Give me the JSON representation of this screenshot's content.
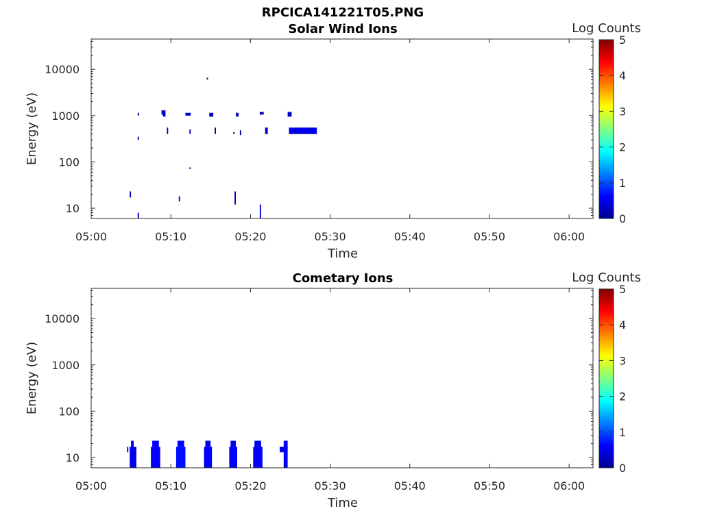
{
  "figure_title": "RPCICA141221T05.PNG",
  "colormap": [
    "#00008f",
    "#0000ff",
    "#0080ff",
    "#00ffff",
    "#80ff80",
    "#ffff00",
    "#ff8000",
    "#ff0000",
    "#800000"
  ],
  "chart_data": [
    {
      "type": "heatmap",
      "title": "Solar Wind Ions",
      "xlabel": "Time",
      "ylabel": "Energy (eV)",
      "y_scale": "log",
      "xlim": [
        "05:00",
        "06:03"
      ],
      "ylim": [
        6,
        45000
      ],
      "x_ticks": [
        "05:00",
        "05:10",
        "05:20",
        "05:30",
        "05:40",
        "05:50",
        "06:00"
      ],
      "y_ticks": [
        10,
        100,
        1000,
        10000
      ],
      "y_tick_labels": [
        "10",
        "100",
        "1000",
        "10000"
      ],
      "colorbar": {
        "label": "Log Counts",
        "range": [
          0,
          5
        ],
        "ticks": [
          "0",
          "1",
          "2",
          "3",
          "4",
          "5"
        ]
      },
      "cells": [
        {
          "t_start": "05:05:50",
          "t_end": "05:06:00",
          "e_low": 1000,
          "e_high": 1150,
          "log_counts": 0.1
        },
        {
          "t_start": "05:05:50",
          "t_end": "05:06:00",
          "e_low": 300,
          "e_high": 350,
          "log_counts": 0.1
        },
        {
          "t_start": "05:04:50",
          "t_end": "05:05:00",
          "e_low": 17,
          "e_high": 23,
          "log_counts": 0.2
        },
        {
          "t_start": "05:05:50",
          "t_end": "05:06:00",
          "e_low": 6,
          "e_high": 8,
          "log_counts": 0.2
        },
        {
          "t_start": "05:08:50",
          "t_end": "05:09:20",
          "e_low": 1050,
          "e_high": 1300,
          "log_counts": 0.3
        },
        {
          "t_start": "05:09:00",
          "t_end": "05:09:20",
          "e_low": 950,
          "e_high": 1050,
          "log_counts": 0.3
        },
        {
          "t_start": "05:09:30",
          "t_end": "05:09:40",
          "e_low": 400,
          "e_high": 550,
          "log_counts": 0.2
        },
        {
          "t_start": "05:11:00",
          "t_end": "05:11:10",
          "e_low": 14,
          "e_high": 18,
          "log_counts": 0.4
        },
        {
          "t_start": "05:11:50",
          "t_end": "05:12:30",
          "e_low": 1000,
          "e_high": 1150,
          "log_counts": 0.3
        },
        {
          "t_start": "05:12:20",
          "t_end": "05:12:30",
          "e_low": 400,
          "e_high": 500,
          "log_counts": 0.2
        },
        {
          "t_start": "05:12:20",
          "t_end": "05:12:30",
          "e_low": 70,
          "e_high": 76,
          "log_counts": 0.1
        },
        {
          "t_start": "05:14:30",
          "t_end": "05:14:40",
          "e_low": 6000,
          "e_high": 6600,
          "log_counts": 0.1
        },
        {
          "t_start": "05:14:50",
          "t_end": "05:15:20",
          "e_low": 950,
          "e_high": 1150,
          "log_counts": 0.3
        },
        {
          "t_start": "05:15:30",
          "t_end": "05:15:40",
          "e_low": 400,
          "e_high": 550,
          "log_counts": 0.2
        },
        {
          "t_start": "05:18:00",
          "t_end": "05:18:10",
          "e_low": 12,
          "e_high": 23,
          "log_counts": 0.3
        },
        {
          "t_start": "05:18:10",
          "t_end": "05:18:30",
          "e_low": 950,
          "e_high": 1150,
          "log_counts": 0.3
        },
        {
          "t_start": "05:17:50",
          "t_end": "05:18:00",
          "e_low": 400,
          "e_high": 440,
          "log_counts": 0.1
        },
        {
          "t_start": "05:18:40",
          "t_end": "05:18:50",
          "e_low": 380,
          "e_high": 480,
          "log_counts": 0.2
        },
        {
          "t_start": "05:21:10",
          "t_end": "05:21:20",
          "e_low": 6,
          "e_high": 12,
          "log_counts": 0.4
        },
        {
          "t_start": "05:21:10",
          "t_end": "05:21:40",
          "e_low": 1050,
          "e_high": 1200,
          "log_counts": 0.3
        },
        {
          "t_start": "05:21:50",
          "t_end": "05:22:10",
          "e_low": 400,
          "e_high": 550,
          "log_counts": 0.3
        },
        {
          "t_start": "05:24:40",
          "t_end": "05:25:10",
          "e_low": 950,
          "e_high": 1200,
          "log_counts": 0.3
        },
        {
          "t_start": "05:24:50",
          "t_end": "05:28:20",
          "e_low": 400,
          "e_high": 550,
          "log_counts": 0.5
        }
      ]
    },
    {
      "type": "heatmap",
      "title": "Cometary Ions",
      "xlabel": "Time",
      "ylabel": "Energy (eV)",
      "y_scale": "log",
      "xlim": [
        "05:00",
        "06:03"
      ],
      "ylim": [
        6,
        45000
      ],
      "x_ticks": [
        "05:00",
        "05:10",
        "05:20",
        "05:30",
        "05:40",
        "05:50",
        "06:00"
      ],
      "y_ticks": [
        10,
        100,
        1000,
        10000
      ],
      "y_tick_labels": [
        "10",
        "100",
        "1000",
        "10000"
      ],
      "colorbar": {
        "label": "Log Counts",
        "range": [
          0,
          5
        ],
        "ticks": [
          "0",
          "1",
          "2",
          "3",
          "4",
          "5"
        ]
      },
      "cells": [
        {
          "t_start": "05:04:30",
          "t_end": "05:04:40",
          "e_low": 13,
          "e_high": 17,
          "log_counts": 0.4
        },
        {
          "t_start": "05:04:50",
          "t_end": "05:05:40",
          "e_low": 6,
          "e_high": 17,
          "log_counts": 0.5
        },
        {
          "t_start": "05:05:00",
          "t_end": "05:05:20",
          "e_low": 17,
          "e_high": 23,
          "log_counts": 0.4
        },
        {
          "t_start": "05:07:30",
          "t_end": "05:08:40",
          "e_low": 6,
          "e_high": 17,
          "log_counts": 0.6
        },
        {
          "t_start": "05:07:40",
          "t_end": "05:08:30",
          "e_low": 17,
          "e_high": 23,
          "log_counts": 0.6
        },
        {
          "t_start": "05:10:40",
          "t_end": "05:11:50",
          "e_low": 6,
          "e_high": 17,
          "log_counts": 0.7
        },
        {
          "t_start": "05:10:50",
          "t_end": "05:11:40",
          "e_low": 17,
          "e_high": 23,
          "log_counts": 0.6
        },
        {
          "t_start": "05:14:10",
          "t_end": "05:15:10",
          "e_low": 6,
          "e_high": 17,
          "log_counts": 0.6
        },
        {
          "t_start": "05:14:20",
          "t_end": "05:15:00",
          "e_low": 17,
          "e_high": 23,
          "log_counts": 0.5
        },
        {
          "t_start": "05:17:20",
          "t_end": "05:18:20",
          "e_low": 6,
          "e_high": 17,
          "log_counts": 0.6
        },
        {
          "t_start": "05:17:30",
          "t_end": "05:18:10",
          "e_low": 17,
          "e_high": 23,
          "log_counts": 0.5
        },
        {
          "t_start": "05:20:20",
          "t_end": "05:21:30",
          "e_low": 6,
          "e_high": 17,
          "log_counts": 0.6
        },
        {
          "t_start": "05:20:30",
          "t_end": "05:21:20",
          "e_low": 17,
          "e_high": 23,
          "log_counts": 0.5
        },
        {
          "t_start": "05:23:40",
          "t_end": "05:24:40",
          "e_low": 13,
          "e_high": 17,
          "log_counts": 0.5
        },
        {
          "t_start": "05:24:10",
          "t_end": "05:24:40",
          "e_low": 6,
          "e_high": 23,
          "log_counts": 0.6
        }
      ]
    }
  ]
}
